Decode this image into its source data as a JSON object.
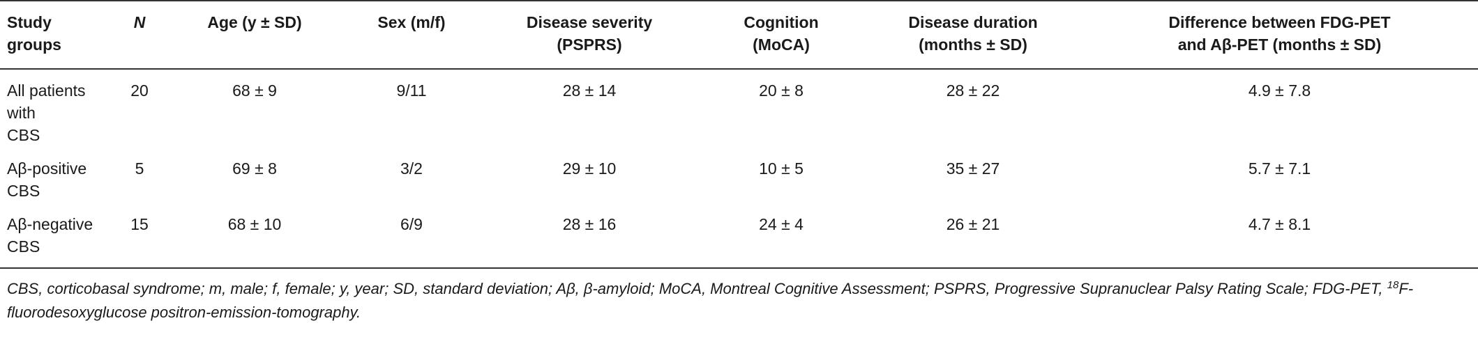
{
  "table": {
    "headers": [
      [
        "Study groups"
      ],
      [
        "N"
      ],
      [
        "Age (y ± SD)"
      ],
      [
        "Sex (m/f)"
      ],
      [
        "Disease severity",
        "(PSPRS)"
      ],
      [
        "Cognition",
        "(MoCA)"
      ],
      [
        "Disease duration",
        "(months ± SD)"
      ],
      [
        "Difference between FDG-PET",
        "and Aβ-PET (months ± SD)"
      ]
    ],
    "rows": [
      {
        "group": [
          "All patients with",
          "CBS"
        ],
        "n": "20",
        "age": "68 ± 9",
        "sex": "9/11",
        "severity": "28 ± 14",
        "cognition": "20 ± 8",
        "duration": "28 ± 22",
        "difference": "4.9 ± 7.8"
      },
      {
        "group": [
          "Aβ-positive",
          "CBS"
        ],
        "n": "5",
        "age": "69 ± 8",
        "sex": "3/2",
        "severity": "29 ± 10",
        "cognition": "10 ± 5",
        "duration": "35 ± 27",
        "difference": "5.7 ± 7.1"
      },
      {
        "group": [
          "Aβ-negative",
          "CBS"
        ],
        "n": "15",
        "age": "68 ± 10",
        "sex": "6/9",
        "severity": "28 ± 16",
        "cognition": "24 ± 4",
        "duration": "26 ± 21",
        "difference": "4.7 ± 8.1"
      }
    ]
  },
  "footnote": {
    "text_before_sup": "CBS, corticobasal syndrome; m, male; f, female; y, year; SD, standard deviation; Aβ, β-amyloid; MoCA, Montreal Cognitive Assessment; PSPRS, Progressive Supranuclear Palsy Rating Scale; FDG-PET, ",
    "sup": "18",
    "text_after_sup": "F-fluorodesoxyglucose positron-emission-tomography."
  }
}
